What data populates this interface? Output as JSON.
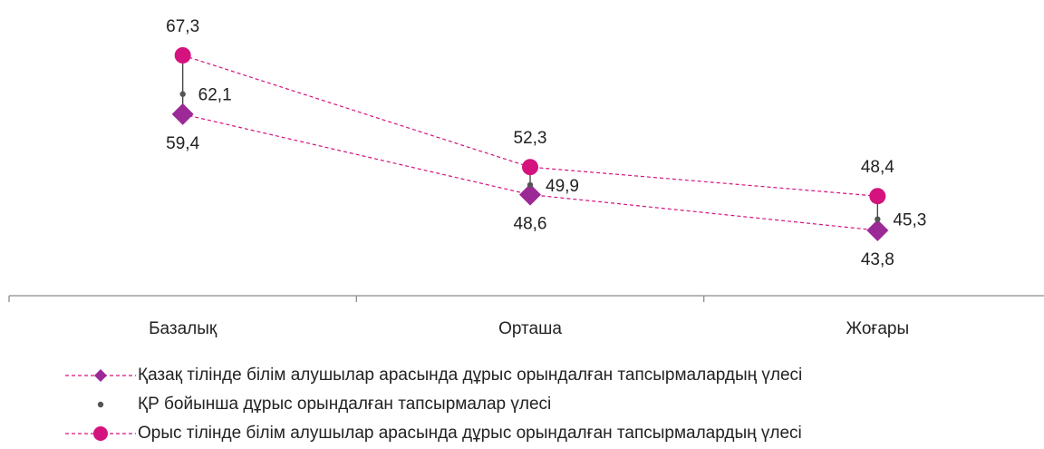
{
  "chart_data": {
    "type": "line",
    "categories": [
      "Базалық",
      "Орташа",
      "Жоғары"
    ],
    "series": [
      {
        "name": "Қазақ тілінде білім алушылар арасында дұрыс орындалған тапсырмалардың үлесі",
        "values": [
          59.4,
          48.6,
          43.8
        ],
        "labels": [
          "59,4",
          "48,6",
          "43,8"
        ],
        "marker": "diamond",
        "line": "dashed",
        "color": "#9b2a97"
      },
      {
        "name": "ҚР бойынша дұрыс орындалған тапсырмалар үлесі",
        "values": [
          62.1,
          49.9,
          45.3
        ],
        "labels": [
          "62,1",
          "49,9",
          "45,3"
        ],
        "marker": "small-dot",
        "line": "none",
        "color": "#555555"
      },
      {
        "name": "Орыс тілінде білім алушылар арасында дұрыс орындалған тапсырмалардың үлесі",
        "values": [
          67.3,
          52.3,
          48.4
        ],
        "labels": [
          "67,3",
          "52,3",
          "48,4"
        ],
        "marker": "circle",
        "line": "dashed",
        "color": "#d4137f"
      }
    ],
    "grid": false,
    "legend_position": "bottom"
  }
}
